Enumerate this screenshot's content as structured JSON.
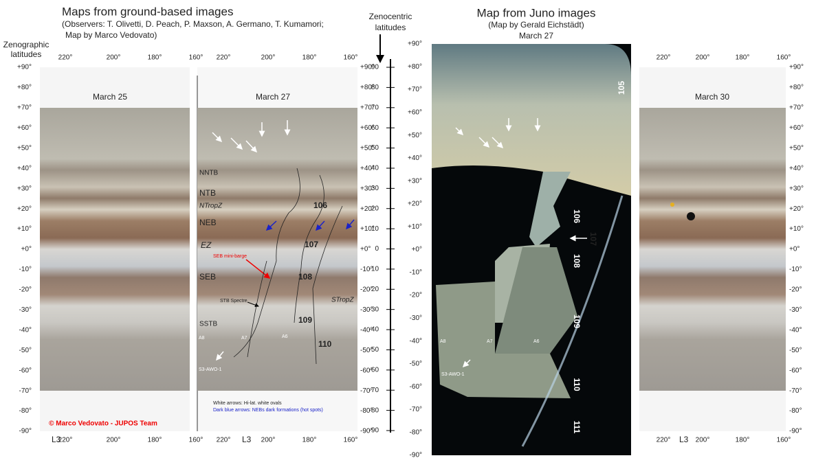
{
  "left_panel": {
    "title": "Maps from ground-based images",
    "observers": "(Observers:  T. Olivetti,  D. Peach,  P. Maxson,  A. Germano,  T. Kumamori;",
    "map_by": "Map by Marco Vedovato)",
    "axis_label_lines": [
      "Zenographic",
      "latitudes"
    ],
    "dates": [
      "March 25",
      "March 27"
    ],
    "belt_labels": [
      "NNTB",
      "NTB",
      "NTropZ",
      "NEB",
      "EZ",
      "SEB",
      "SSTB",
      "STropZ"
    ],
    "feature_labels": [
      "SEB mini-barge",
      "STB Spectre",
      "A8",
      "A7",
      "A6",
      "S3-AWO-1"
    ],
    "spot_numbers": [
      "106",
      "107",
      "108",
      "109",
      "110"
    ],
    "legend": [
      "White arrows:  Hi-lat. white ovals",
      "Dark blue arrows:  NEBs dark formations (hot spots)"
    ],
    "copyright": "© Marco Vedovato - JUPOS Team",
    "longitude_system": "L3"
  },
  "center_axis": {
    "label_lines": [
      "Zenocentric",
      "latitudes"
    ],
    "ticks": [
      90,
      80,
      70,
      60,
      50,
      40,
      30,
      20,
      10,
      0,
      -10,
      -20,
      -30,
      -40,
      -50,
      -60,
      -70,
      -80,
      -90
    ]
  },
  "right_panel": {
    "title": "Map from Juno images",
    "map_by": "(Map by Gerald Eichstädt)",
    "date": "March 27",
    "spot_numbers": [
      "105",
      "106",
      "107",
      "108",
      "109",
      "110",
      "111"
    ],
    "feature_labels": [
      "A8",
      "A7",
      "A6",
      "S3-AWO-1"
    ]
  },
  "far_right_panel": {
    "date": "March 30",
    "longitude_system": "L3"
  },
  "latitude_labels": [
    "+90°",
    "+80°",
    "+70°",
    "+60°",
    "+50°",
    "+40°",
    "+30°",
    "+20°",
    "+10°",
    "+0°",
    "-10°",
    "-20°",
    "-30°",
    "-40°",
    "-50°",
    "-60°",
    "-70°",
    "-80°",
    "-90°"
  ],
  "longitude_labels": [
    "220°",
    "200°",
    "180°",
    "160°"
  ]
}
